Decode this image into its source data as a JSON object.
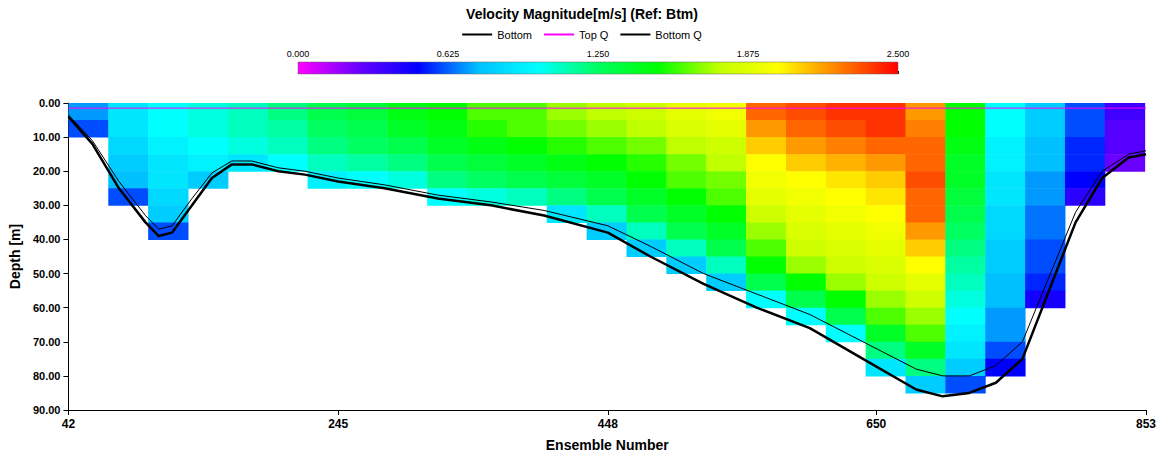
{
  "chart_data": {
    "type": "heatmap",
    "title": "Velocity Magnitude[m/s] (Ref: Btm)",
    "x_label": "Ensemble Number",
    "y_label": "Depth [m]",
    "xlim": [
      42,
      853
    ],
    "xticks": [
      42,
      245,
      448,
      650,
      853
    ],
    "ylim": [
      0,
      90
    ],
    "yticks": [
      {
        "value": 0,
        "label": "0.00"
      },
      {
        "value": 10,
        "label": "10.00"
      },
      {
        "value": 20,
        "label": "20.00"
      },
      {
        "value": 30,
        "label": "30.00"
      },
      {
        "value": 40,
        "label": "40.00"
      },
      {
        "value": 50,
        "label": "50.00"
      },
      {
        "value": 60,
        "label": "60.00"
      },
      {
        "value": 70,
        "label": "70.00"
      },
      {
        "value": 80,
        "label": "80.00"
      },
      {
        "value": 90,
        "label": "90.00"
      }
    ],
    "legend": "top",
    "colorbar": {
      "lim": [
        0,
        2.5
      ],
      "ticks": [
        {
          "value": 0,
          "label": "0.000"
        },
        {
          "value": 0.625,
          "label": "0.625"
        },
        {
          "value": 1.25,
          "label": "1.250"
        },
        {
          "value": 1.875,
          "label": "1.875"
        },
        {
          "value": 2.5,
          "label": "2.500"
        }
      ]
    },
    "x_edges": [
      42,
      72,
      102,
      132,
      162,
      192,
      222,
      252,
      282,
      312,
      342,
      372,
      402,
      432,
      462,
      492,
      522,
      552,
      582,
      612,
      642,
      672,
      702,
      732,
      762,
      792,
      822,
      852
    ],
    "depth_edges": [
      0,
      5,
      10,
      15,
      20,
      25,
      30,
      35,
      40,
      45,
      50,
      55,
      60,
      65,
      70,
      75,
      80,
      85,
      90
    ],
    "cells": [
      [
        0.7,
        0.6,
        null,
        null,
        null,
        null,
        null,
        null,
        null,
        null,
        null,
        null,
        null,
        null,
        null,
        null,
        null,
        null
      ],
      [
        0.9,
        0.9,
        0.85,
        0.8,
        0.75,
        0.6,
        null,
        null,
        null,
        null,
        null,
        null,
        null,
        null,
        null,
        null,
        null,
        null
      ],
      [
        1.0,
        1.0,
        0.95,
        0.9,
        0.9,
        0.85,
        0.8,
        0.6,
        null,
        null,
        null,
        null,
        null,
        null,
        null,
        null,
        null,
        null
      ],
      [
        1.05,
        1.05,
        1.0,
        0.95,
        0.8,
        null,
        null,
        null,
        null,
        null,
        null,
        null,
        null,
        null,
        null,
        null,
        null,
        null
      ],
      [
        1.1,
        1.1,
        1.05,
        0.9,
        null,
        null,
        null,
        null,
        null,
        null,
        null,
        null,
        null,
        null,
        null,
        null,
        null,
        null
      ],
      [
        1.2,
        1.15,
        1.1,
        1.0,
        null,
        null,
        null,
        null,
        null,
        null,
        null,
        null,
        null,
        null,
        null,
        null,
        null,
        null
      ],
      [
        1.3,
        1.25,
        1.2,
        1.1,
        0.95,
        null,
        null,
        null,
        null,
        null,
        null,
        null,
        null,
        null,
        null,
        null,
        null,
        null
      ],
      [
        1.35,
        1.3,
        1.25,
        1.15,
        1.0,
        null,
        null,
        null,
        null,
        null,
        null,
        null,
        null,
        null,
        null,
        null,
        null,
        null
      ],
      [
        1.45,
        1.4,
        1.3,
        1.2,
        1.05,
        null,
        null,
        null,
        null,
        null,
        null,
        null,
        null,
        null,
        null,
        null,
        null,
        null
      ],
      [
        1.5,
        1.45,
        1.4,
        1.3,
        1.2,
        1.0,
        null,
        null,
        null,
        null,
        null,
        null,
        null,
        null,
        null,
        null,
        null,
        null
      ],
      [
        1.6,
        1.55,
        1.45,
        1.35,
        1.25,
        1.05,
        null,
        null,
        null,
        null,
        null,
        null,
        null,
        null,
        null,
        null,
        null,
        null
      ],
      [
        1.6,
        1.6,
        1.5,
        1.4,
        1.3,
        1.1,
        null,
        null,
        null,
        null,
        null,
        null,
        null,
        null,
        null,
        null,
        null,
        null
      ],
      [
        1.7,
        1.65,
        1.55,
        1.45,
        1.35,
        1.2,
        0.9,
        null,
        null,
        null,
        null,
        null,
        null,
        null,
        null,
        null,
        null,
        null
      ],
      [
        1.75,
        1.7,
        1.6,
        1.5,
        1.4,
        1.3,
        1.1,
        0.8,
        null,
        null,
        null,
        null,
        null,
        null,
        null,
        null,
        null,
        null
      ],
      [
        1.8,
        1.75,
        1.65,
        1.55,
        1.5,
        1.4,
        1.3,
        1.1,
        0.8,
        null,
        null,
        null,
        null,
        null,
        null,
        null,
        null,
        null
      ],
      [
        1.9,
        1.85,
        1.75,
        1.65,
        1.6,
        1.5,
        1.4,
        1.3,
        1.1,
        0.8,
        null,
        null,
        null,
        null,
        null,
        null,
        null,
        null
      ],
      [
        1.95,
        1.9,
        1.8,
        1.75,
        1.65,
        1.6,
        1.5,
        1.4,
        1.3,
        1.1,
        0.8,
        null,
        null,
        null,
        null,
        null,
        null,
        null
      ],
      [
        2.3,
        2.2,
        2.1,
        2.0,
        1.95,
        1.9,
        1.8,
        1.7,
        1.6,
        1.5,
        1.3,
        1.0,
        null,
        null,
        null,
        null,
        null,
        null
      ],
      [
        2.35,
        2.3,
        2.2,
        2.1,
        2.0,
        1.95,
        1.9,
        1.85,
        1.8,
        1.7,
        1.5,
        1.3,
        1.0,
        null,
        null,
        null,
        null,
        null
      ],
      [
        2.4,
        2.35,
        2.25,
        2.15,
        2.05,
        2.0,
        1.95,
        1.9,
        1.85,
        1.8,
        1.7,
        1.5,
        1.3,
        1.0,
        null,
        null,
        null,
        null
      ],
      [
        2.4,
        2.4,
        2.3,
        2.2,
        2.1,
        2.05,
        2.0,
        1.95,
        1.9,
        1.85,
        1.8,
        1.7,
        1.6,
        1.4,
        1.2,
        0.9,
        null,
        null
      ],
      [
        2.2,
        2.25,
        2.3,
        2.3,
        2.35,
        2.3,
        2.3,
        2.2,
        2.1,
        2.0,
        1.9,
        1.8,
        1.7,
        1.6,
        1.4,
        1.2,
        0.8,
        null
      ],
      [
        1.5,
        1.5,
        1.45,
        1.4,
        1.4,
        1.35,
        1.3,
        1.25,
        1.2,
        1.15,
        1.1,
        1.05,
        1.0,
        0.95,
        0.9,
        0.8,
        0.6,
        null
      ],
      [
        1.0,
        1.0,
        0.95,
        0.95,
        0.9,
        0.9,
        0.85,
        0.85,
        0.8,
        0.8,
        0.75,
        0.75,
        0.7,
        0.7,
        0.6,
        0.5,
        null,
        null
      ],
      [
        0.8,
        0.8,
        0.75,
        0.75,
        0.7,
        0.7,
        0.65,
        0.65,
        0.6,
        0.6,
        0.55,
        0.45,
        null,
        null,
        null,
        null,
        null,
        null
      ],
      [
        0.6,
        0.6,
        0.55,
        0.55,
        0.5,
        0.4,
        null,
        null,
        null,
        null,
        null,
        null,
        null,
        null,
        null,
        null,
        null,
        null
      ],
      [
        0.35,
        0.3,
        0.3,
        0.25,
        null,
        null,
        null,
        null,
        null,
        null,
        null,
        null,
        null,
        null,
        null,
        null,
        null,
        null
      ]
    ],
    "series": [
      {
        "name": "Bottom",
        "color": "#000000",
        "type": "line",
        "x": [
          42,
          60,
          80,
          100,
          110,
          120,
          135,
          150,
          165,
          180,
          200,
          220,
          245,
          280,
          320,
          360,
          400,
          448,
          480,
          520,
          560,
          600,
          640,
          680,
          700,
          720,
          740,
          760,
          780,
          800,
          820,
          840,
          853
        ],
        "values": [
          4,
          12,
          25,
          35,
          39,
          38,
          30,
          22,
          18,
          18,
          20,
          21,
          23,
          25,
          28,
          30,
          33,
          38,
          45,
          53,
          60,
          66,
          75,
          84,
          86,
          85,
          82,
          75,
          55,
          35,
          22,
          16,
          15
        ]
      },
      {
        "name": "Top Q",
        "color": "#ff00ff",
        "type": "line",
        "x": [
          42,
          853
        ],
        "values": [
          1.5,
          1.5
        ]
      },
      {
        "name": "Bottom Q",
        "color": "#000000",
        "type": "line",
        "x": [
          42,
          60,
          80,
          100,
          110,
          120,
          135,
          150,
          165,
          180,
          200,
          220,
          245,
          280,
          320,
          360,
          400,
          448,
          480,
          520,
          560,
          600,
          640,
          680,
          700,
          720,
          740,
          760,
          780,
          800,
          820,
          840,
          853
        ],
        "values": [
          3.5,
          11,
          23,
          33,
          37,
          36,
          28,
          20.5,
          17,
          17,
          19,
          20,
          22,
          24,
          27,
          29,
          31.5,
          36,
          42,
          50,
          56,
          62,
          70,
          78,
          80,
          80,
          77,
          70,
          51,
          32,
          20,
          15,
          14
        ]
      }
    ]
  }
}
